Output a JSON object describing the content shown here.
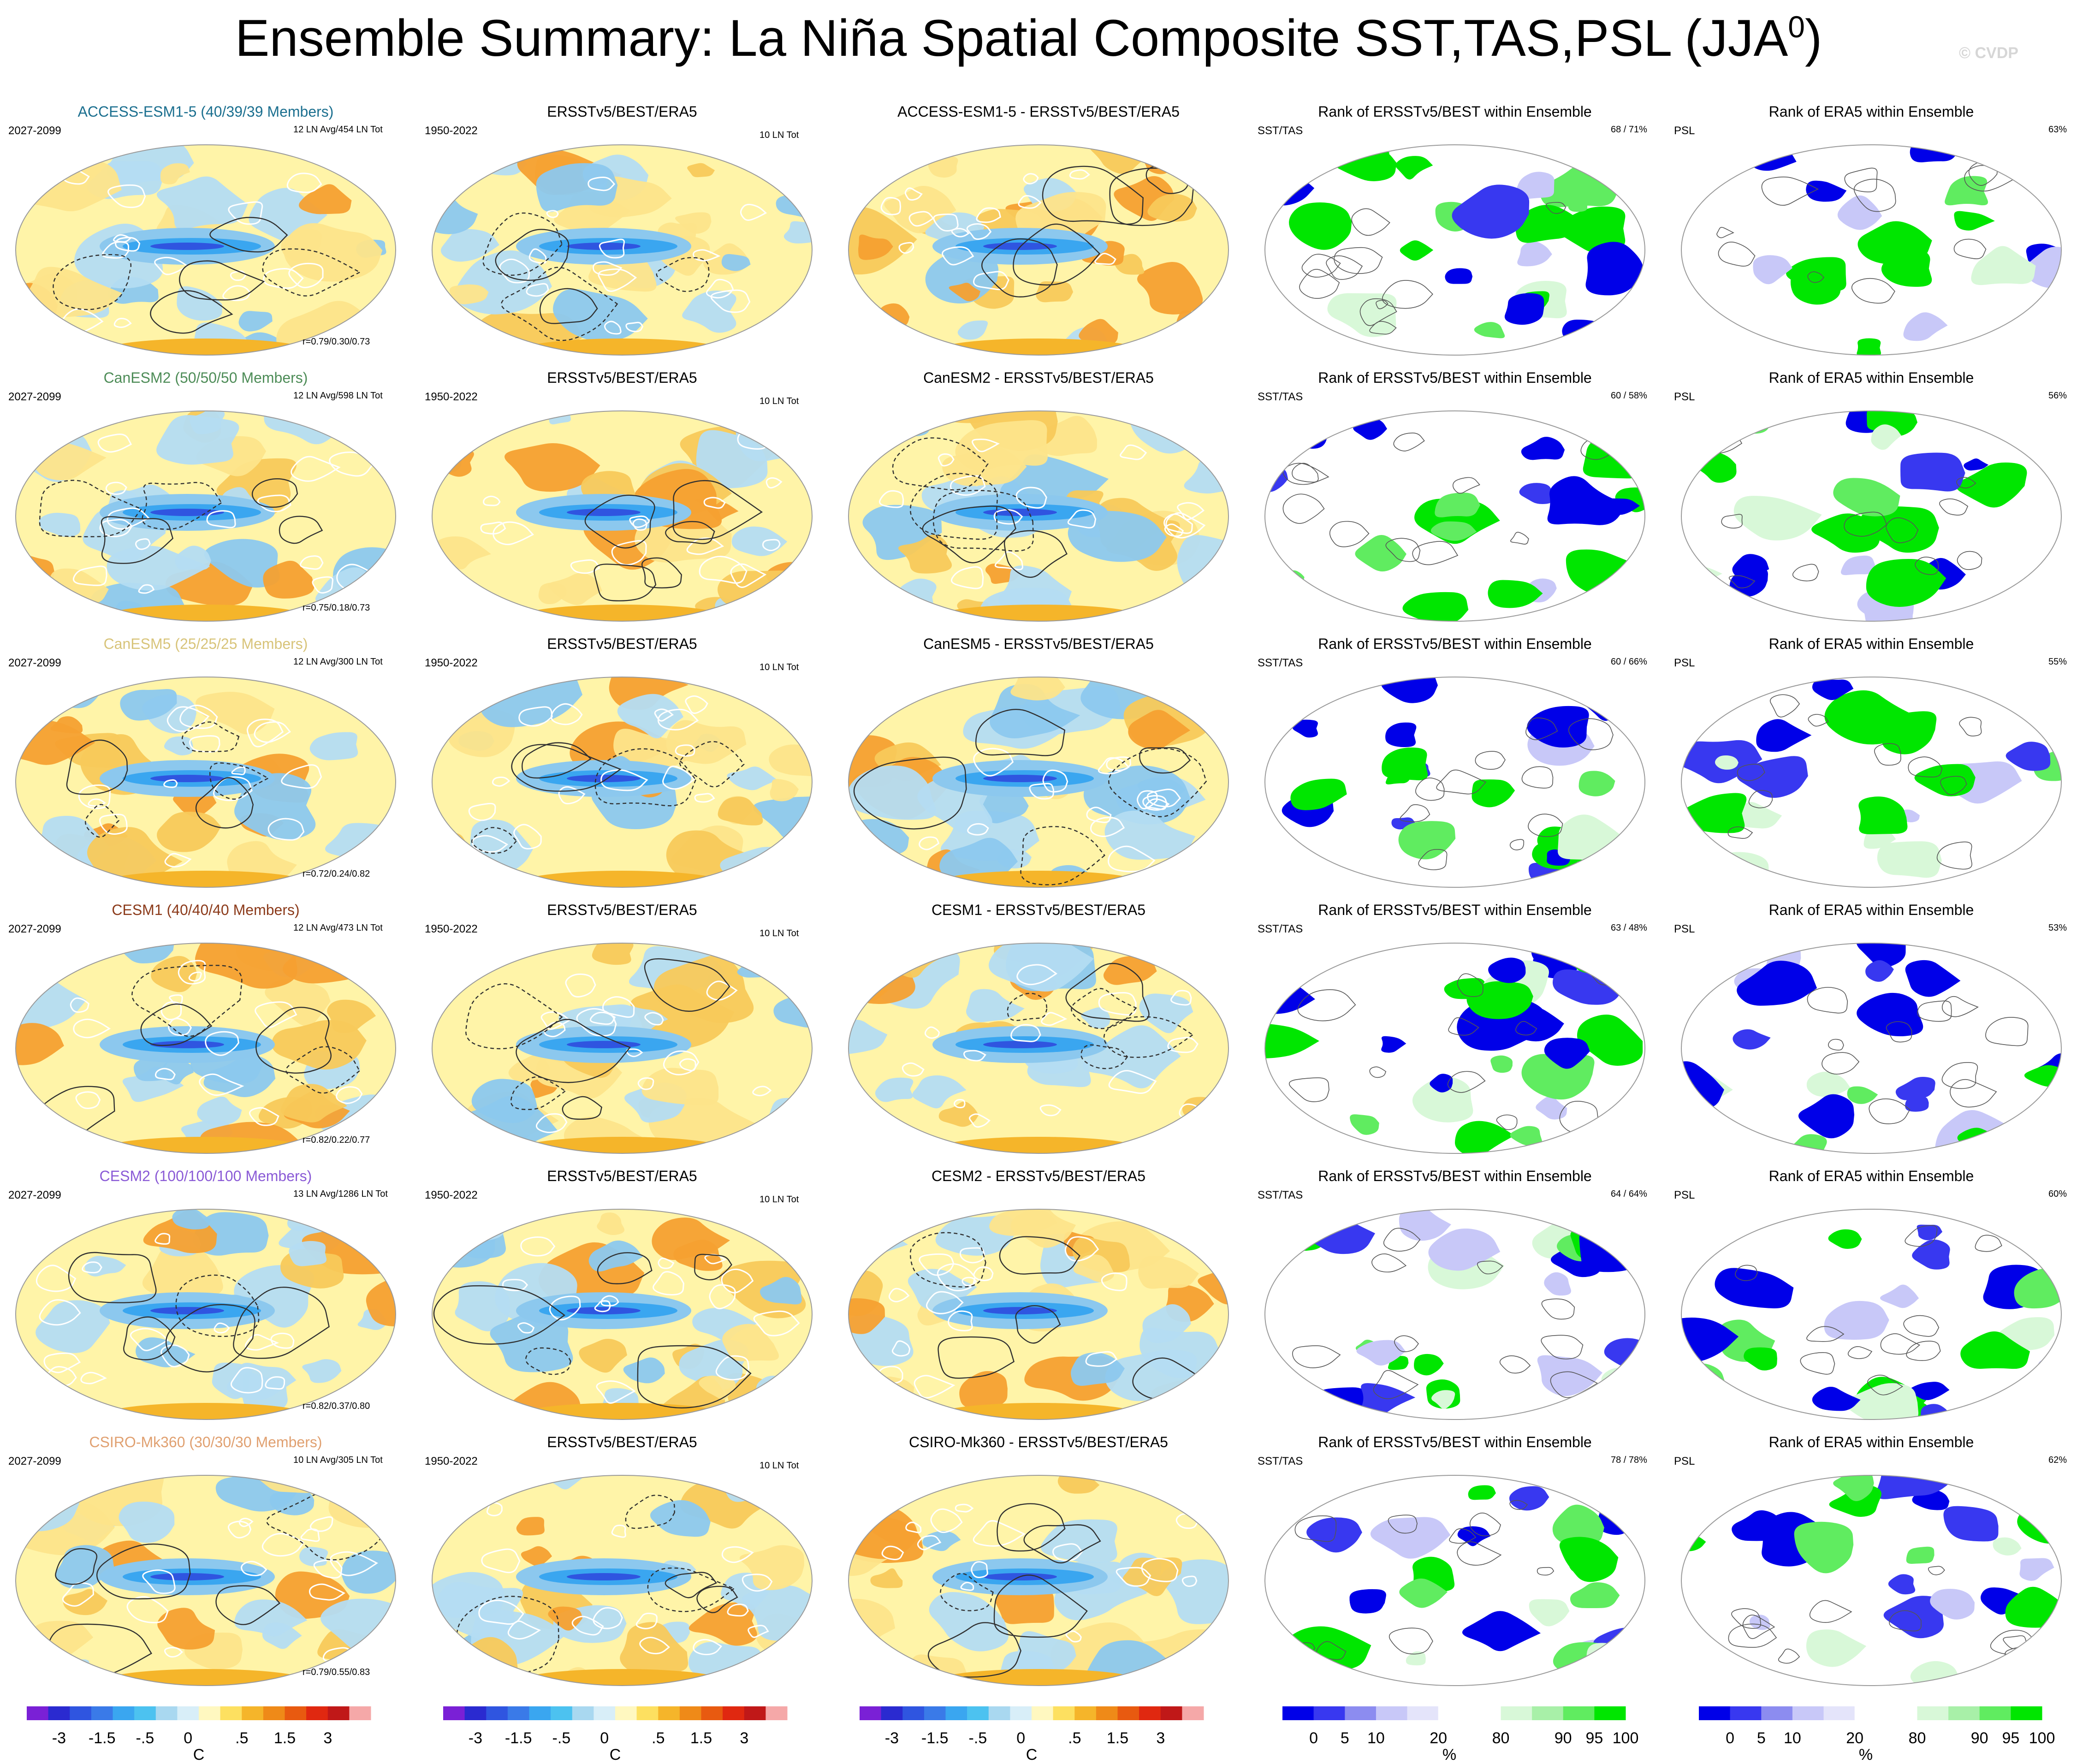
{
  "title": {
    "main": "Ensemble Summary: La Niña Spatial Composite SST,TAS,PSL (JJA",
    "sup": "0",
    "close": ")"
  },
  "copyright": "© CVDP",
  "rows": [
    {
      "model": "ACCESS-ESM1-5 (40/39/39 Members)",
      "model_color": "#1b6f8f",
      "years": "2027-2099",
      "counts": "12 LN Avg/454 LN Tot",
      "r": "r=0.79/0.30/0.73",
      "diff": "ACCESS-ESM1-5 - ERSSTv5/BEST/ERA5",
      "rank_pct": "68 /  71%",
      "era_pct": "63%"
    },
    {
      "model": "CanESM2 (50/50/50 Members)",
      "model_color": "#4d8c57",
      "years": "2027-2099",
      "counts": "12 LN Avg/598 LN Tot",
      "r": "r=0.75/0.18/0.73",
      "diff": "CanESM2 - ERSSTv5/BEST/ERA5",
      "rank_pct": "60 /  58%",
      "era_pct": "56%"
    },
    {
      "model": "CanESM5 (25/25/25 Members)",
      "model_color": "#d8c47a",
      "years": "2027-2099",
      "counts": "12 LN Avg/300 LN Tot",
      "r": "r=0.72/0.24/0.82",
      "diff": "CanESM5 - ERSSTv5/BEST/ERA5",
      "rank_pct": "60 /  66%",
      "era_pct": "55%"
    },
    {
      "model": "CESM1 (40/40/40 Members)",
      "model_color": "#8b3a1a",
      "years": "2027-2099",
      "counts": "12 LN Avg/473 LN Tot",
      "r": "r=0.82/0.22/0.77",
      "diff": "CESM1 - ERSSTv5/BEST/ERA5",
      "rank_pct": "63 /  48%",
      "era_pct": "53%"
    },
    {
      "model": "CESM2 (100/100/100 Members)",
      "model_color": "#8a5ad6",
      "years": "2027-2099",
      "counts": "13 LN Avg/1286 LN Tot",
      "r": "r=0.82/0.37/0.80",
      "diff": "CESM2 - ERSSTv5/BEST/ERA5",
      "rank_pct": "64 /  64%",
      "era_pct": "60%"
    },
    {
      "model": "CSIRO-Mk360 (30/30/30 Members)",
      "model_color": "#e0a070",
      "years": "2027-2099",
      "counts": "10 LN Avg/305 LN Tot",
      "r": "r=0.79/0.55/0.83",
      "diff": "CSIRO-Mk360 - ERSSTv5/BEST/ERA5",
      "rank_pct": "78 /  78%",
      "era_pct": "62%"
    }
  ],
  "obs": {
    "title": "ERSSTv5/BEST/ERA5",
    "years": "1950-2022",
    "count": "10 LN Tot"
  },
  "rank": {
    "title": "Rank of ERSSTv5/BEST within Ensemble",
    "var": "SST/TAS"
  },
  "era": {
    "title": "Rank of ERA5 within Ensemble",
    "var": "PSL"
  },
  "colorbars": {
    "temp": {
      "colors": [
        "#7a20d6",
        "#2a2ad0",
        "#2f55e0",
        "#3a7ae8",
        "#3aa6f0",
        "#4cc2f0",
        "#a9d8f0",
        "#d8eef8",
        "#fff8c0",
        "#fde060",
        "#f5b52a",
        "#ef8a18",
        "#e85a10",
        "#e02810",
        "#c01818",
        "#f5a8a8"
      ],
      "labels": [
        "-3",
        "-1.5",
        "-.5",
        "0",
        ".5",
        "1.5",
        "3"
      ],
      "label_index": [
        1.5,
        3.5,
        5.5,
        7.5,
        10,
        12,
        14
      ],
      "unit": "C"
    },
    "rank": {
      "colors": [
        "#0000e8",
        "#3838f0",
        "#8c8cf0",
        "#c8c8f8",
        "#e4e4fa",
        "#ffffff",
        "#ffffff",
        "#d8f8d8",
        "#a8f0a8",
        "#60ec60",
        "#00e600"
      ],
      "labels": [
        "0",
        "5",
        "10",
        "20",
        "80",
        "90",
        "95",
        "100"
      ],
      "label_index": [
        1,
        2,
        3,
        5,
        7,
        9,
        10,
        11
      ],
      "unit": "%"
    }
  }
}
